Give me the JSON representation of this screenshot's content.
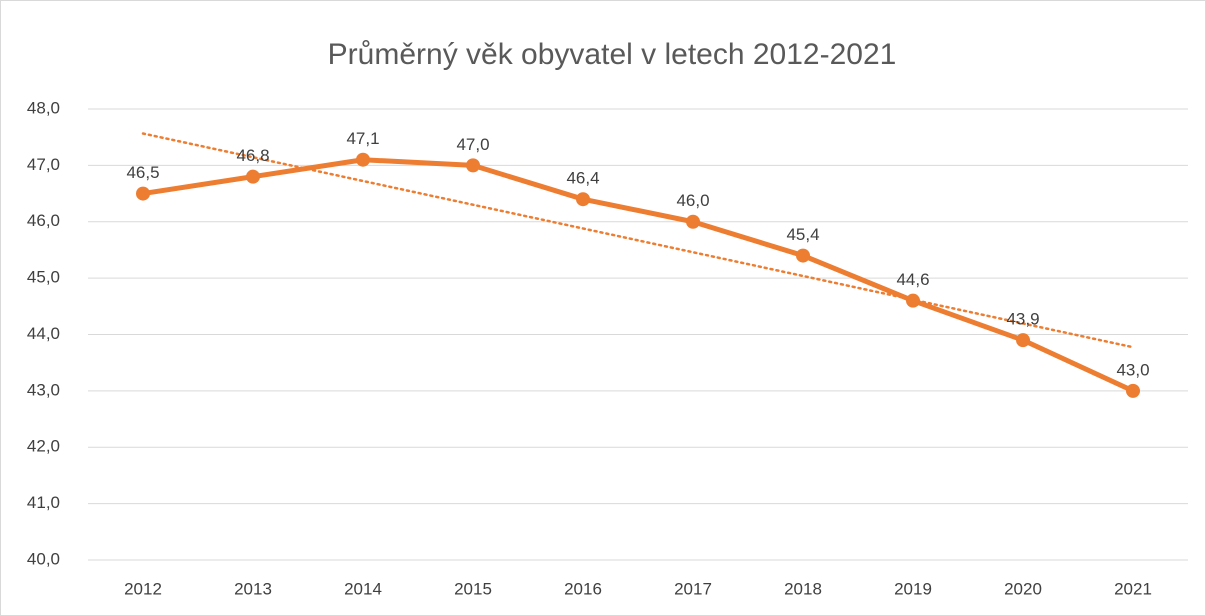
{
  "chart_data": {
    "type": "line",
    "title": "Průměrný věk obyvatel v letech 2012-2021",
    "categories": [
      "2012",
      "2013",
      "2014",
      "2015",
      "2016",
      "2017",
      "2018",
      "2019",
      "2020",
      "2021"
    ],
    "series": [
      {
        "color": "#ed7d31",
        "values": [
          46.5,
          46.8,
          47.1,
          47.0,
          46.4,
          46.0,
          45.4,
          44.6,
          43.9,
          43.0
        ],
        "value_labels": [
          "46,5",
          "46,8",
          "47,1",
          "47,0",
          "46,4",
          "46,0",
          "45,4",
          "44,6",
          "43,9",
          "43,0"
        ],
        "trendline": "linear"
      }
    ],
    "ylim": [
      40,
      48
    ],
    "yticks": [
      {
        "value": 40,
        "label": "40,0"
      },
      {
        "value": 41,
        "label": "41,0"
      },
      {
        "value": 42,
        "label": "42,0"
      },
      {
        "value": 43,
        "label": "43,0"
      },
      {
        "value": 44,
        "label": "44,0"
      },
      {
        "value": 45,
        "label": "45,0"
      },
      {
        "value": 46,
        "label": "46,0"
      },
      {
        "value": 47,
        "label": "47,0"
      },
      {
        "value": 48,
        "label": "48,0"
      }
    ],
    "grid": true
  }
}
